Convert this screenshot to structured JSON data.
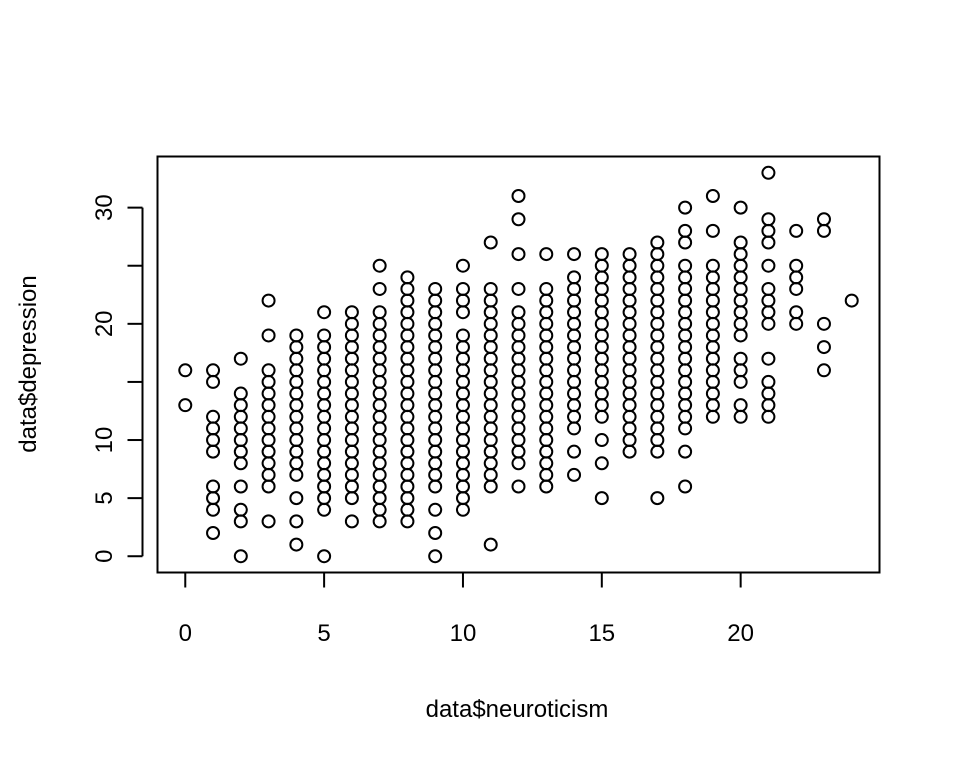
{
  "chart_data": {
    "type": "scatter",
    "title": "",
    "xlabel": "data$neuroticism",
    "ylabel": "data$depression",
    "xlim": [
      -1,
      25
    ],
    "ylim": [
      -1.4,
      34.4
    ],
    "x_ticks": [
      0,
      5,
      10,
      15,
      20
    ],
    "y_ticks": [
      0,
      5,
      10,
      15,
      20,
      25,
      30
    ],
    "x_tick_labels": [
      "0",
      "5",
      "10",
      "15",
      "20"
    ],
    "y_tick_labels": [
      "0",
      "5",
      "10",
      "15",
      "20",
      "25",
      "30"
    ],
    "y_tick_labels_shown": [
      "0",
      "5",
      "10",
      "",
      "20",
      "",
      "30"
    ],
    "grid": false,
    "legend": "none",
    "marker": "open-circle",
    "points_by_x": [
      {
        "x": 0,
        "y": [
          13,
          16
        ]
      },
      {
        "x": 1,
        "y": [
          2,
          4,
          5,
          6,
          9,
          10,
          11,
          12,
          15,
          16
        ]
      },
      {
        "x": 2,
        "y": [
          0,
          3,
          4,
          6,
          8,
          9,
          10,
          11,
          12,
          13,
          14,
          17
        ]
      },
      {
        "x": 3,
        "y": [
          3,
          6,
          7,
          8,
          9,
          10,
          11,
          12,
          13,
          14,
          15,
          16,
          19,
          22
        ]
      },
      {
        "x": 4,
        "y": [
          1,
          3,
          5,
          7,
          8,
          9,
          10,
          11,
          12,
          13,
          14,
          15,
          16,
          17,
          18,
          19
        ]
      },
      {
        "x": 5,
        "y": [
          0,
          4,
          5,
          6,
          7,
          8,
          9,
          10,
          11,
          12,
          13,
          14,
          15,
          16,
          17,
          18,
          19,
          21
        ]
      },
      {
        "x": 6,
        "y": [
          3,
          5,
          6,
          7,
          8,
          9,
          10,
          11,
          12,
          13,
          14,
          15,
          16,
          17,
          18,
          19,
          20,
          21
        ]
      },
      {
        "x": 7,
        "y": [
          3,
          4,
          5,
          6,
          7,
          8,
          9,
          10,
          11,
          12,
          13,
          14,
          15,
          16,
          17,
          18,
          19,
          20,
          21,
          23,
          25
        ]
      },
      {
        "x": 8,
        "y": [
          3,
          4,
          5,
          6,
          7,
          8,
          9,
          10,
          11,
          12,
          13,
          14,
          15,
          16,
          17,
          18,
          19,
          20,
          21,
          22,
          23,
          24
        ]
      },
      {
        "x": 9,
        "y": [
          0,
          2,
          4,
          6,
          7,
          8,
          9,
          10,
          11,
          12,
          13,
          14,
          15,
          16,
          17,
          18,
          19,
          20,
          21,
          22,
          23
        ]
      },
      {
        "x": 10,
        "y": [
          4,
          5,
          6,
          7,
          8,
          9,
          10,
          11,
          12,
          13,
          14,
          15,
          16,
          17,
          18,
          19,
          21,
          22,
          23,
          25
        ]
      },
      {
        "x": 11,
        "y": [
          1,
          6,
          7,
          8,
          9,
          10,
          11,
          12,
          13,
          14,
          15,
          16,
          17,
          18,
          19,
          20,
          21,
          22,
          23,
          27
        ]
      },
      {
        "x": 12,
        "y": [
          6,
          8,
          9,
          10,
          11,
          12,
          13,
          14,
          15,
          16,
          17,
          18,
          19,
          20,
          21,
          23,
          26,
          29,
          31
        ]
      },
      {
        "x": 13,
        "y": [
          6,
          7,
          8,
          9,
          10,
          11,
          12,
          13,
          14,
          15,
          16,
          17,
          18,
          19,
          20,
          21,
          22,
          23,
          26
        ]
      },
      {
        "x": 14,
        "y": [
          7,
          9,
          11,
          12,
          13,
          14,
          15,
          16,
          17,
          18,
          19,
          20,
          21,
          22,
          23,
          24,
          26
        ]
      },
      {
        "x": 15,
        "y": [
          5,
          8,
          10,
          12,
          13,
          14,
          15,
          16,
          17,
          18,
          19,
          20,
          21,
          22,
          23,
          24,
          25,
          26
        ]
      },
      {
        "x": 16,
        "y": [
          9,
          10,
          11,
          12,
          13,
          14,
          15,
          16,
          17,
          18,
          19,
          20,
          21,
          22,
          23,
          24,
          25,
          26
        ]
      },
      {
        "x": 17,
        "y": [
          5,
          9,
          10,
          11,
          12,
          13,
          14,
          15,
          16,
          17,
          18,
          19,
          20,
          21,
          22,
          23,
          24,
          25,
          26,
          27
        ]
      },
      {
        "x": 18,
        "y": [
          6,
          9,
          11,
          12,
          13,
          14,
          15,
          16,
          17,
          18,
          19,
          20,
          21,
          22,
          23,
          24,
          25,
          27,
          28,
          30
        ]
      },
      {
        "x": 19,
        "y": [
          12,
          13,
          14,
          15,
          16,
          17,
          18,
          19,
          20,
          21,
          22,
          23,
          24,
          25,
          28,
          31
        ]
      },
      {
        "x": 20,
        "y": [
          12,
          13,
          15,
          16,
          17,
          19,
          20,
          21,
          22,
          23,
          24,
          25,
          26,
          27,
          30
        ]
      },
      {
        "x": 21,
        "y": [
          12,
          13,
          14,
          15,
          17,
          20,
          21,
          22,
          23,
          25,
          27,
          28,
          29,
          33
        ]
      },
      {
        "x": 22,
        "y": [
          20,
          21,
          23,
          24,
          25,
          28
        ]
      },
      {
        "x": 23,
        "y": [
          16,
          18,
          20,
          28,
          29
        ]
      },
      {
        "x": 24,
        "y": [
          22
        ]
      }
    ]
  }
}
